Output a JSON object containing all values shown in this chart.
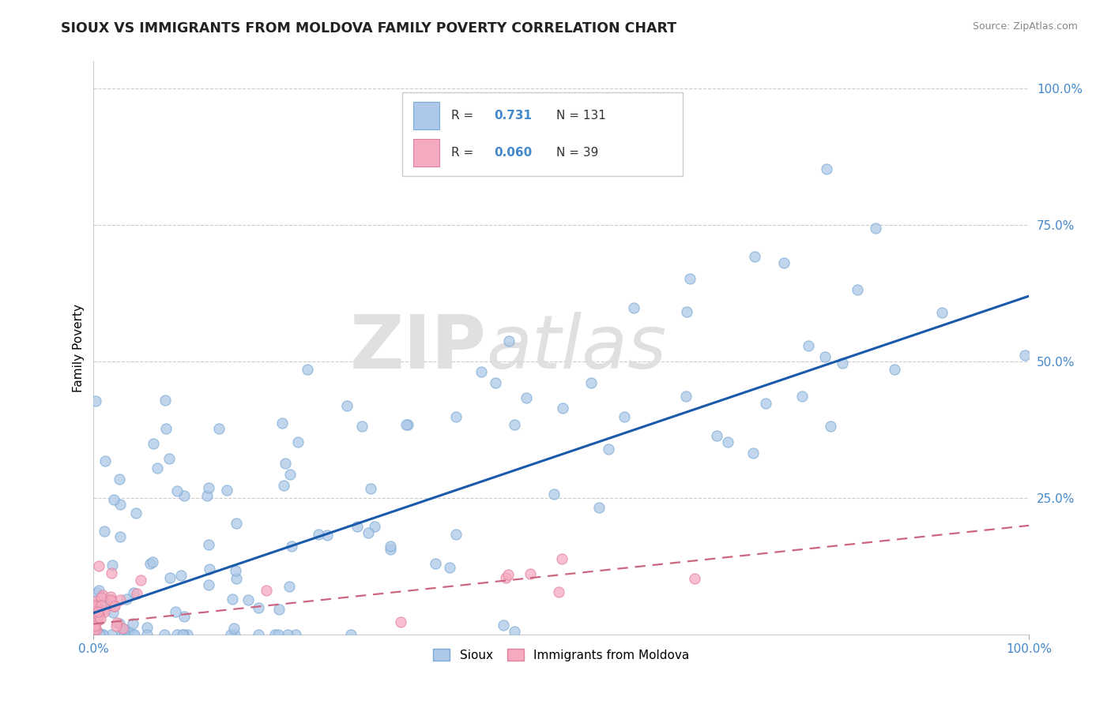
{
  "title": "SIOUX VS IMMIGRANTS FROM MOLDOVA FAMILY POVERTY CORRELATION CHART",
  "source": "Source: ZipAtlas.com",
  "ylabel": "Family Poverty",
  "watermark_zip": "ZIP",
  "watermark_atlas": "atlas",
  "sioux_R": 0.731,
  "sioux_N": 131,
  "moldova_R": 0.06,
  "moldova_N": 39,
  "sioux_color": "#adc8e8",
  "sioux_edge_color": "#7aaad4",
  "sioux_line_color": "#1a5aaa",
  "moldova_color": "#f5aabf",
  "moldova_edge_color": "#e080a0",
  "moldova_line_color": "#cc6680",
  "background_color": "#ffffff",
  "grid_color": "#cccccc",
  "tick_color": "#4488cc",
  "title_color": "#222222",
  "source_color": "#888888",
  "sioux_line_start_y": 0.04,
  "sioux_line_end_y": 0.62,
  "moldova_line_start_y": 0.02,
  "moldova_line_end_y": 0.2,
  "xlim": [
    0.0,
    1.0
  ],
  "ylim": [
    0.0,
    1.05
  ],
  "title_fontsize": 12.5,
  "axis_fontsize": 11,
  "legend_fontsize": 11,
  "source_fontsize": 9,
  "marker_size": 90,
  "marker_alpha": 0.75,
  "marker_linewidth": 0.8
}
